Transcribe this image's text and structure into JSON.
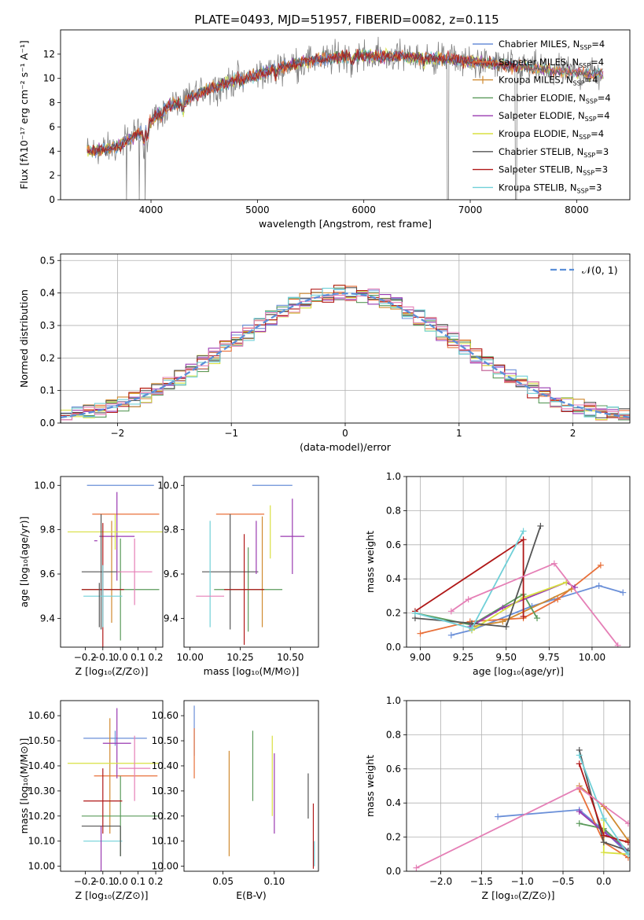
{
  "figure_title": "PLATE=0493, MJD=51957, FIBERID=0082, z=0.115",
  "colors": {
    "chab_miles": "#6a8fd8",
    "salp_miles": "#e8703a",
    "krou_miles": "#d08a30",
    "chab_elodie": "#5a9a5a",
    "salp_elodie": "#9a3ab0",
    "krou_elodie": "#d8e040",
    "chab_stelib": "#555555",
    "salp_stelib": "#b01818",
    "krou_stelib": "#70d0d8",
    "pink": "#e57fb6",
    "gray_data": "#808080",
    "gauss": "#5b8fd8"
  },
  "chart_data": [
    {
      "id": "spectrum",
      "type": "line",
      "title": "PLATE=0493, MJD=51957, FIBERID=0082, z=0.115",
      "xlabel": "wavelength [Angstrom, rest frame]",
      "ylabel": "Flux [fλ10⁻¹⁷ erg cm⁻² s⁻¹ A⁻¹]",
      "xlim": [
        3150,
        8500
      ],
      "ylim": [
        0,
        14
      ],
      "xticks": [
        4000,
        5000,
        6000,
        7000,
        8000
      ],
      "yticks": [
        0,
        2,
        4,
        6,
        8,
        10,
        12
      ],
      "continuum": [
        [
          3400,
          4.0
        ],
        [
          3600,
          4.2
        ],
        [
          3700,
          4.4
        ],
        [
          3800,
          5.0
        ],
        [
          3900,
          5.6
        ],
        [
          4000,
          6.5
        ],
        [
          4100,
          7.3
        ],
        [
          4200,
          7.9
        ],
        [
          4300,
          8.0
        ],
        [
          4400,
          8.6
        ],
        [
          4500,
          9.0
        ],
        [
          4600,
          9.3
        ],
        [
          4800,
          9.9
        ],
        [
          5000,
          10.3
        ],
        [
          5200,
          10.9
        ],
        [
          5400,
          11.3
        ],
        [
          5600,
          11.6
        ],
        [
          5800,
          11.8
        ],
        [
          6000,
          11.9
        ],
        [
          6200,
          11.8
        ],
        [
          6400,
          11.8
        ],
        [
          6600,
          11.7
        ],
        [
          6800,
          11.6
        ],
        [
          7000,
          11.4
        ],
        [
          7200,
          11.2
        ],
        [
          7400,
          11.0
        ],
        [
          7600,
          10.8
        ],
        [
          7800,
          10.6
        ],
        [
          8000,
          10.5
        ],
        [
          8200,
          10.4
        ]
      ],
      "series_ranges": [
        [
          3400,
          7450
        ],
        [
          3400,
          8250
        ],
        [
          3400,
          7450
        ],
        [
          3400,
          7450
        ],
        [
          3400,
          8250
        ],
        [
          3400,
          8250
        ],
        [
          3400,
          8250
        ],
        [
          3400,
          7450
        ],
        [
          3400,
          8250
        ]
      ],
      "legend_position": "right",
      "legend": [
        {
          "main": "Chabrier MILES, N",
          "sub": "SSP",
          "tail": "=4"
        },
        {
          "main": "Salpeter MILES, N",
          "sub": "SSP",
          "tail": "=4"
        },
        {
          "main": "Kroupa MILES, N",
          "sub": "SSP",
          "tail": "=4"
        },
        {
          "main": "Chabrier ELODIE, N",
          "sub": "SSP",
          "tail": "=4"
        },
        {
          "main": "Salpeter ELODIE, N",
          "sub": "SSP",
          "tail": "=4"
        },
        {
          "main": "Kroupa ELODIE, N",
          "sub": "SSP",
          "tail": "=4"
        },
        {
          "main": "Chabrier STELIB, N",
          "sub": "SSP",
          "tail": "=3"
        },
        {
          "main": "Salpeter STELIB, N",
          "sub": "SSP",
          "tail": "=3"
        },
        {
          "main": "Kroupa STELIB, N",
          "sub": "SSP",
          "tail": "=3"
        }
      ]
    },
    {
      "id": "residuals",
      "type": "line",
      "xlabel": "(data-model)/error",
      "ylabel": "Normed distribution",
      "xlim": [
        -2.5,
        2.5
      ],
      "ylim": [
        0,
        0.52
      ],
      "xticks": [
        -2,
        -1,
        0,
        1,
        2
      ],
      "yticks": [
        0.0,
        0.1,
        0.2,
        0.3,
        0.4,
        0.5
      ],
      "grid": true,
      "bin_width": 0.1,
      "legend_label": "𝒩(0, 1)",
      "legend_position": "top-right"
    },
    {
      "id": "age_Z",
      "type": "scatter",
      "xlabel": "Z [log₁₀(Z/Z⊙)]",
      "ylabel": "age  [log₁₀(age/yr)]",
      "xlim": [
        -0.34,
        0.24
      ],
      "ylim": [
        9.27,
        10.04
      ],
      "xticks": [
        -0.2,
        -0.1,
        0.0,
        0.1,
        0.2
      ],
      "yticks": [
        9.4,
        9.6,
        9.8,
        10.0
      ],
      "points": [
        {
          "x": 0.0,
          "y": 10.0,
          "xerr": 0.19,
          "yerr": 0.0
        },
        {
          "x": 0.03,
          "y": 9.87,
          "xerr": 0.19,
          "yerr": 0.0
        },
        {
          "x": -0.05,
          "y": 9.61,
          "xerr": 0.0,
          "yerr": 0.23
        },
        {
          "x": 0.0,
          "y": 9.53,
          "xerr": 0.22,
          "yerr": 0.23
        },
        {
          "x": -0.02,
          "y": 9.77,
          "xerr": 0.1,
          "yerr": 0.2
        },
        {
          "x": -0.03,
          "y": 9.79,
          "xerr": 0.27,
          "yerr": 0.08
        },
        {
          "x": -0.11,
          "y": 9.61,
          "xerr": 0.11,
          "yerr": 0.26
        },
        {
          "x": -0.1,
          "y": 9.53,
          "xerr": 0.12,
          "yerr": 0.3
        },
        {
          "x": -0.1,
          "y": 9.5,
          "xerr": 0.11,
          "yerr": 0.14
        },
        {
          "x": 0.08,
          "y": 9.61,
          "xerr": 0.1,
          "yerr": 0.15
        },
        {
          "x": -0.14,
          "y": 9.75,
          "xerr": 0.0,
          "yerr": 0.0
        },
        {
          "x": -0.12,
          "y": 9.46,
          "xerr": 0.0,
          "yerr": 0.1
        }
      ]
    },
    {
      "id": "age_mass",
      "type": "scatter",
      "xlabel": "mass [log₁₀(M/M⊙)]",
      "ylabel": "",
      "xlim": [
        9.97,
        10.64
      ],
      "ylim": [
        9.27,
        10.04
      ],
      "xticks": [
        10.0,
        10.25,
        10.5
      ],
      "yticks": [
        9.4,
        9.6,
        9.8,
        10.0
      ],
      "points": [
        {
          "x": 10.41,
          "y": 10.0,
          "xerr": 0.1,
          "yerr": 0.0
        },
        {
          "x": 10.25,
          "y": 9.87,
          "xerr": 0.12,
          "yerr": 0.0
        },
        {
          "x": 10.36,
          "y": 9.61,
          "xerr": 0.0,
          "yerr": 0.25
        },
        {
          "x": 10.29,
          "y": 9.53,
          "xerr": 0.17,
          "yerr": 0.19
        },
        {
          "x": 10.51,
          "y": 9.77,
          "xerr": 0.06,
          "yerr": 0.17
        },
        {
          "x": 10.4,
          "y": 9.79,
          "xerr": 0.0,
          "yerr": 0.12
        },
        {
          "x": 10.2,
          "y": 9.61,
          "xerr": 0.14,
          "yerr": 0.26
        },
        {
          "x": 10.27,
          "y": 9.53,
          "xerr": 0.1,
          "yerr": 0.25
        },
        {
          "x": 10.1,
          "y": 9.6,
          "xerr": 0.0,
          "yerr": 0.24
        },
        {
          "x": 10.1,
          "y": 9.5,
          "xerr": 0.07,
          "yerr": 0.0
        },
        {
          "x": 10.33,
          "y": 9.72,
          "xerr": 0.0,
          "yerr": 0.12
        }
      ]
    },
    {
      "id": "mw_age",
      "type": "line",
      "xlabel": "age  [log₁₀(age/yr)]",
      "ylabel": "mass weight",
      "xlim": [
        8.92,
        10.22
      ],
      "ylim": [
        0,
        1
      ],
      "xticks": [
        9.0,
        9.25,
        9.5,
        9.75,
        10.0
      ],
      "yticks": [
        0.0,
        0.2,
        0.4,
        0.6,
        0.8,
        1.0
      ],
      "grid": true,
      "series": [
        {
          "points": [
            [
              9.18,
              0.07
            ],
            [
              9.3,
              0.1
            ],
            [
              9.65,
              0.24
            ],
            [
              9.78,
              0.28
            ],
            [
              10.04,
              0.36
            ],
            [
              10.18,
              0.32
            ]
          ]
        },
        {
          "points": [
            [
              9.0,
              0.08
            ],
            [
              9.29,
              0.15
            ],
            [
              9.6,
              0.17
            ],
            [
              9.8,
              0.28
            ],
            [
              10.05,
              0.48
            ]
          ]
        },
        {
          "points": [
            [
              9.3,
              0.12
            ],
            [
              9.48,
              0.15
            ],
            [
              9.88,
              0.34
            ]
          ]
        },
        {
          "points": [
            [
              8.97,
              0.2
            ],
            [
              9.3,
              0.13
            ],
            [
              9.6,
              0.31
            ],
            [
              9.68,
              0.17
            ]
          ]
        },
        {
          "points": [
            [
              9.29,
              0.12
            ],
            [
              9.48,
              0.23
            ],
            [
              9.85,
              0.38
            ],
            [
              9.9,
              0.35
            ]
          ]
        },
        {
          "points": [
            [
              9.3,
              0.1
            ],
            [
              9.6,
              0.29
            ],
            [
              9.85,
              0.38
            ]
          ]
        },
        {
          "points": [
            [
              8.97,
              0.17
            ],
            [
              9.3,
              0.14
            ],
            [
              9.5,
              0.12
            ],
            [
              9.7,
              0.71
            ]
          ]
        },
        {
          "points": [
            [
              8.97,
              0.21
            ],
            [
              9.6,
              0.63
            ],
            [
              9.6,
              0.18
            ]
          ]
        },
        {
          "points": [
            [
              8.97,
              0.2
            ],
            [
              9.3,
              0.11
            ],
            [
              9.6,
              0.68
            ]
          ]
        },
        {
          "points": [
            [
              9.18,
              0.21
            ],
            [
              9.28,
              0.28
            ],
            [
              9.78,
              0.49
            ],
            [
              10.15,
              0.01
            ]
          ]
        }
      ]
    },
    {
      "id": "mass_Z",
      "type": "scatter",
      "xlabel": "Z [log₁₀(Z/Z⊙)]",
      "ylabel": "mass [log₁₀(M/M⊙)]",
      "xlim": [
        -0.34,
        0.24
      ],
      "ylim": [
        9.98,
        10.66
      ],
      "xticks": [
        -0.2,
        -0.1,
        0.0,
        0.1,
        0.2
      ],
      "yticks": [
        10.0,
        10.1,
        10.2,
        10.3,
        10.4,
        10.5,
        10.6
      ],
      "points": [
        {
          "x": -0.03,
          "y": 10.51,
          "xerr": 0.18,
          "yerr": 0.03
        },
        {
          "x": 0.03,
          "y": 10.36,
          "xerr": 0.18,
          "yerr": 0.0
        },
        {
          "x": -0.06,
          "y": 10.36,
          "xerr": 0.0,
          "yerr": 0.23
        },
        {
          "x": 0.0,
          "y": 10.2,
          "xerr": 0.22,
          "yerr": 0.16
        },
        {
          "x": -0.02,
          "y": 10.49,
          "xerr": 0.08,
          "yerr": 0.14
        },
        {
          "x": -0.04,
          "y": 10.41,
          "xerr": 0.26,
          "yerr": 0.0
        },
        {
          "x": -0.11,
          "y": 10.16,
          "xerr": 0.11,
          "yerr": 0.0
        },
        {
          "x": -0.1,
          "y": 10.26,
          "xerr": 0.11,
          "yerr": 0.13
        },
        {
          "x": -0.1,
          "y": 10.1,
          "xerr": 0.11,
          "yerr": 0.0
        },
        {
          "x": 0.08,
          "y": 10.39,
          "xerr": 0.09,
          "yerr": 0.13
        },
        {
          "x": -0.11,
          "y": 10.06,
          "xerr": 0.0,
          "yerr": 0.1
        },
        {
          "x": 0.0,
          "y": 10.1,
          "xerr": 0.0,
          "yerr": 0.06
        }
      ]
    },
    {
      "id": "mass_ebv",
      "type": "scatter",
      "xlabel": "E(B-V)",
      "ylabel": "",
      "xlim": [
        0.012,
        0.143
      ],
      "ylim": [
        9.98,
        10.66
      ],
      "xticks": [
        0.05,
        0.1
      ],
      "yticks": [
        10.0,
        10.1,
        10.2,
        10.3,
        10.4,
        10.5,
        10.6
      ],
      "points": [
        {
          "x": 0.022,
          "y": 10.54,
          "yerr": 0.1
        },
        {
          "x": 0.022,
          "y": 10.45,
          "yerr": 0.1
        },
        {
          "x": 0.056,
          "y": 10.25,
          "yerr": 0.21
        },
        {
          "x": 0.079,
          "y": 10.4,
          "yerr": 0.14
        },
        {
          "x": 0.1,
          "y": 10.29,
          "yerr": 0.16
        },
        {
          "x": 0.098,
          "y": 10.36,
          "yerr": 0.16
        },
        {
          "x": 0.133,
          "y": 10.28,
          "yerr": 0.09
        },
        {
          "x": 0.138,
          "y": 10.12,
          "yerr": 0.13
        },
        {
          "x": 0.139,
          "y": 10.05,
          "yerr": 0.05
        }
      ]
    },
    {
      "id": "mw_Z",
      "type": "line",
      "xlabel": "Z [log₁₀(Z/Z⊙)]",
      "ylabel": "mass weight",
      "xlim": [
        -2.42,
        0.32
      ],
      "ylim": [
        0,
        1
      ],
      "xticks": [
        -2.0,
        -1.5,
        -1.0,
        -0.5,
        0.0
      ],
      "yticks": [
        0.0,
        0.2,
        0.4,
        0.6,
        0.8,
        1.0
      ],
      "grid": true,
      "series": [
        {
          "points": [
            [
              -1.3,
              0.32
            ],
            [
              -0.3,
              0.36
            ],
            [
              0.0,
              0.24
            ],
            [
              0.3,
              0.1
            ]
          ]
        },
        {
          "points": [
            [
              -0.3,
              0.48
            ],
            [
              0.0,
              0.17
            ],
            [
              0.3,
              0.08
            ]
          ]
        },
        {
          "points": [
            [
              -0.3,
              0.5
            ],
            [
              0.0,
              0.38
            ],
            [
              0.3,
              0.18
            ]
          ]
        },
        {
          "points": [
            [
              -0.3,
              0.28
            ],
            [
              0.0,
              0.25
            ],
            [
              0.3,
              0.12
            ]
          ]
        },
        {
          "points": [
            [
              -0.3,
              0.35
            ],
            [
              0.0,
              0.23
            ],
            [
              0.3,
              0.12
            ]
          ]
        },
        {
          "points": [
            [
              0.0,
              0.3
            ],
            [
              0.0,
              0.11
            ],
            [
              0.3,
              0.1
            ]
          ]
        },
        {
          "points": [
            [
              -0.3,
              0.71
            ],
            [
              0.0,
              0.17
            ],
            [
              0.3,
              0.12
            ]
          ]
        },
        {
          "points": [
            [
              -0.3,
              0.63
            ],
            [
              0.0,
              0.21
            ],
            [
              0.3,
              0.17
            ]
          ]
        },
        {
          "points": [
            [
              -0.3,
              0.68
            ],
            [
              0.0,
              0.31
            ],
            [
              0.3,
              0.1
            ]
          ]
        },
        {
          "points": [
            [
              -2.3,
              0.02
            ],
            [
              -0.3,
              0.49
            ],
            [
              0.3,
              0.28
            ]
          ]
        }
      ]
    }
  ]
}
